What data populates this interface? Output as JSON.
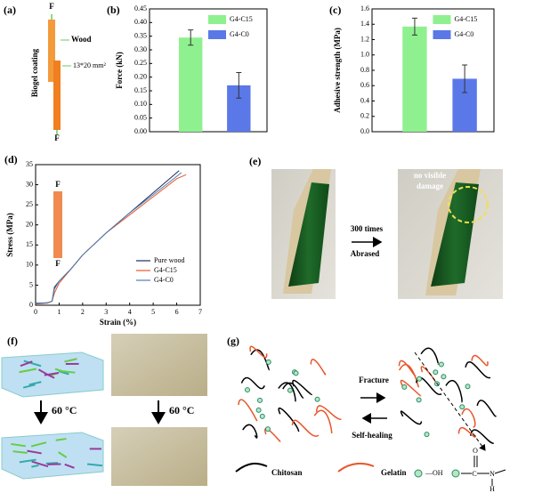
{
  "chart_data": [
    {
      "type": "bar",
      "label": "(b)",
      "ylabel": "Force (kN)",
      "categories": [
        null
      ],
      "series": [
        {
          "name": "G4-C15",
          "color": "#8ff08f",
          "values": [
            0.345
          ],
          "errors": [
            0.028
          ]
        },
        {
          "name": "G4-C0",
          "color": "#5b78e8",
          "values": [
            0.17
          ],
          "errors": [
            0.047
          ]
        }
      ],
      "ylim": [
        0,
        0.45
      ],
      "yticks": [
        {
          "value": 0,
          "label": "0.00"
        },
        {
          "value": 0.05,
          "label": "0.05"
        },
        {
          "value": 0.1,
          "label": "0.10"
        },
        {
          "value": 0.15,
          "label": "0.15"
        },
        {
          "value": 0.2,
          "label": "0.20"
        },
        {
          "value": 0.25,
          "label": "0.25"
        },
        {
          "value": 0.3,
          "label": "0.30"
        },
        {
          "value": 0.35,
          "label": "0.35"
        },
        {
          "value": 0.4,
          "label": "0.40"
        },
        {
          "value": 0.45,
          "label": "0.45"
        }
      ],
      "legend": "upper right"
    },
    {
      "type": "bar",
      "label": "(c)",
      "ylabel": "Adhesive strength (MPa)",
      "categories": [
        null
      ],
      "series": [
        {
          "name": "G4-C15",
          "color": "#8ff08f",
          "values": [
            1.37
          ],
          "errors": [
            0.11
          ]
        },
        {
          "name": "G4-C0",
          "color": "#5b78e8",
          "values": [
            0.69
          ],
          "errors": [
            0.18
          ]
        }
      ],
      "ylim": [
        0,
        1.6
      ],
      "yticks": [
        {
          "value": 0,
          "label": "0.0"
        },
        {
          "value": 0.2,
          "label": "0.2"
        },
        {
          "value": 0.4,
          "label": "0.4"
        },
        {
          "value": 0.6,
          "label": "0.6"
        },
        {
          "value": 0.8,
          "label": "0.8"
        },
        {
          "value": 1,
          "label": "1.0"
        },
        {
          "value": 1.2,
          "label": "1.2"
        },
        {
          "value": 1.4,
          "label": "1.4"
        },
        {
          "value": 1.6,
          "label": "1.6"
        }
      ],
      "legend": "upper right"
    },
    {
      "type": "line",
      "label": "(d)",
      "xlabel": "Strain (%)",
      "ylabel": "Stress (MPa)",
      "inset_labels": [
        "F",
        "F"
      ],
      "series": [
        {
          "name": "Pure wood",
          "color": "#1f2a5a",
          "x": [
            0,
            0.5,
            0.7,
            0.8,
            1.0,
            1.5,
            2,
            3,
            4,
            5,
            6.1
          ],
          "values": [
            0.5,
            0.6,
            1,
            4.5,
            6,
            9,
            12.5,
            18,
            23,
            28,
            33.5
          ]
        },
        {
          "name": "G4-C15",
          "color": "#e8562a",
          "x": [
            0,
            0.5,
            0.7,
            0.8,
            1.0,
            1.5,
            2,
            3,
            4,
            5,
            6,
            6.4
          ],
          "values": [
            0.3,
            0.5,
            1,
            3,
            5.5,
            9,
            12.5,
            18,
            22.5,
            27,
            31.5,
            32.5
          ]
        },
        {
          "name": "G4-C0",
          "color": "#4a7fb5",
          "x": [
            0,
            0.5,
            0.7,
            0.8,
            1.0,
            1.5,
            2,
            3,
            4,
            5,
            6.2
          ],
          "values": [
            0.4,
            0.6,
            1,
            4,
            6,
            9,
            12.5,
            18,
            23,
            27.5,
            33
          ]
        }
      ],
      "xlim": [
        0,
        7
      ],
      "xticks": [
        0,
        1,
        2,
        3,
        4,
        5,
        6,
        7
      ],
      "ylim": [
        0,
        35
      ],
      "yticks": [
        0,
        5,
        10,
        15,
        20,
        25,
        30,
        35
      ],
      "legend": "lower right"
    }
  ],
  "panels": {
    "a": {
      "label": "(a)",
      "force_top": "F",
      "wood": "Wood",
      "coating": "Biogel coating",
      "size": "13*20 mm²",
      "force_bottom": "F"
    },
    "e": {
      "label": "(e)",
      "count": "300 times",
      "action": "Abrased",
      "note_line1": "no visible",
      "note_line2": "damage"
    },
    "f": {
      "label": "(f)",
      "temp_left": "60 °C",
      "temp_right": "60 °C"
    },
    "g": {
      "label": "(g)",
      "forward": "Fracture",
      "backward": "Self-healing",
      "chitosan": "Chitosan",
      "gelatin": "Gelatin",
      "hydroxyl": "—OH",
      "atoms": [
        "O",
        "C",
        "N",
        "H"
      ]
    }
  }
}
